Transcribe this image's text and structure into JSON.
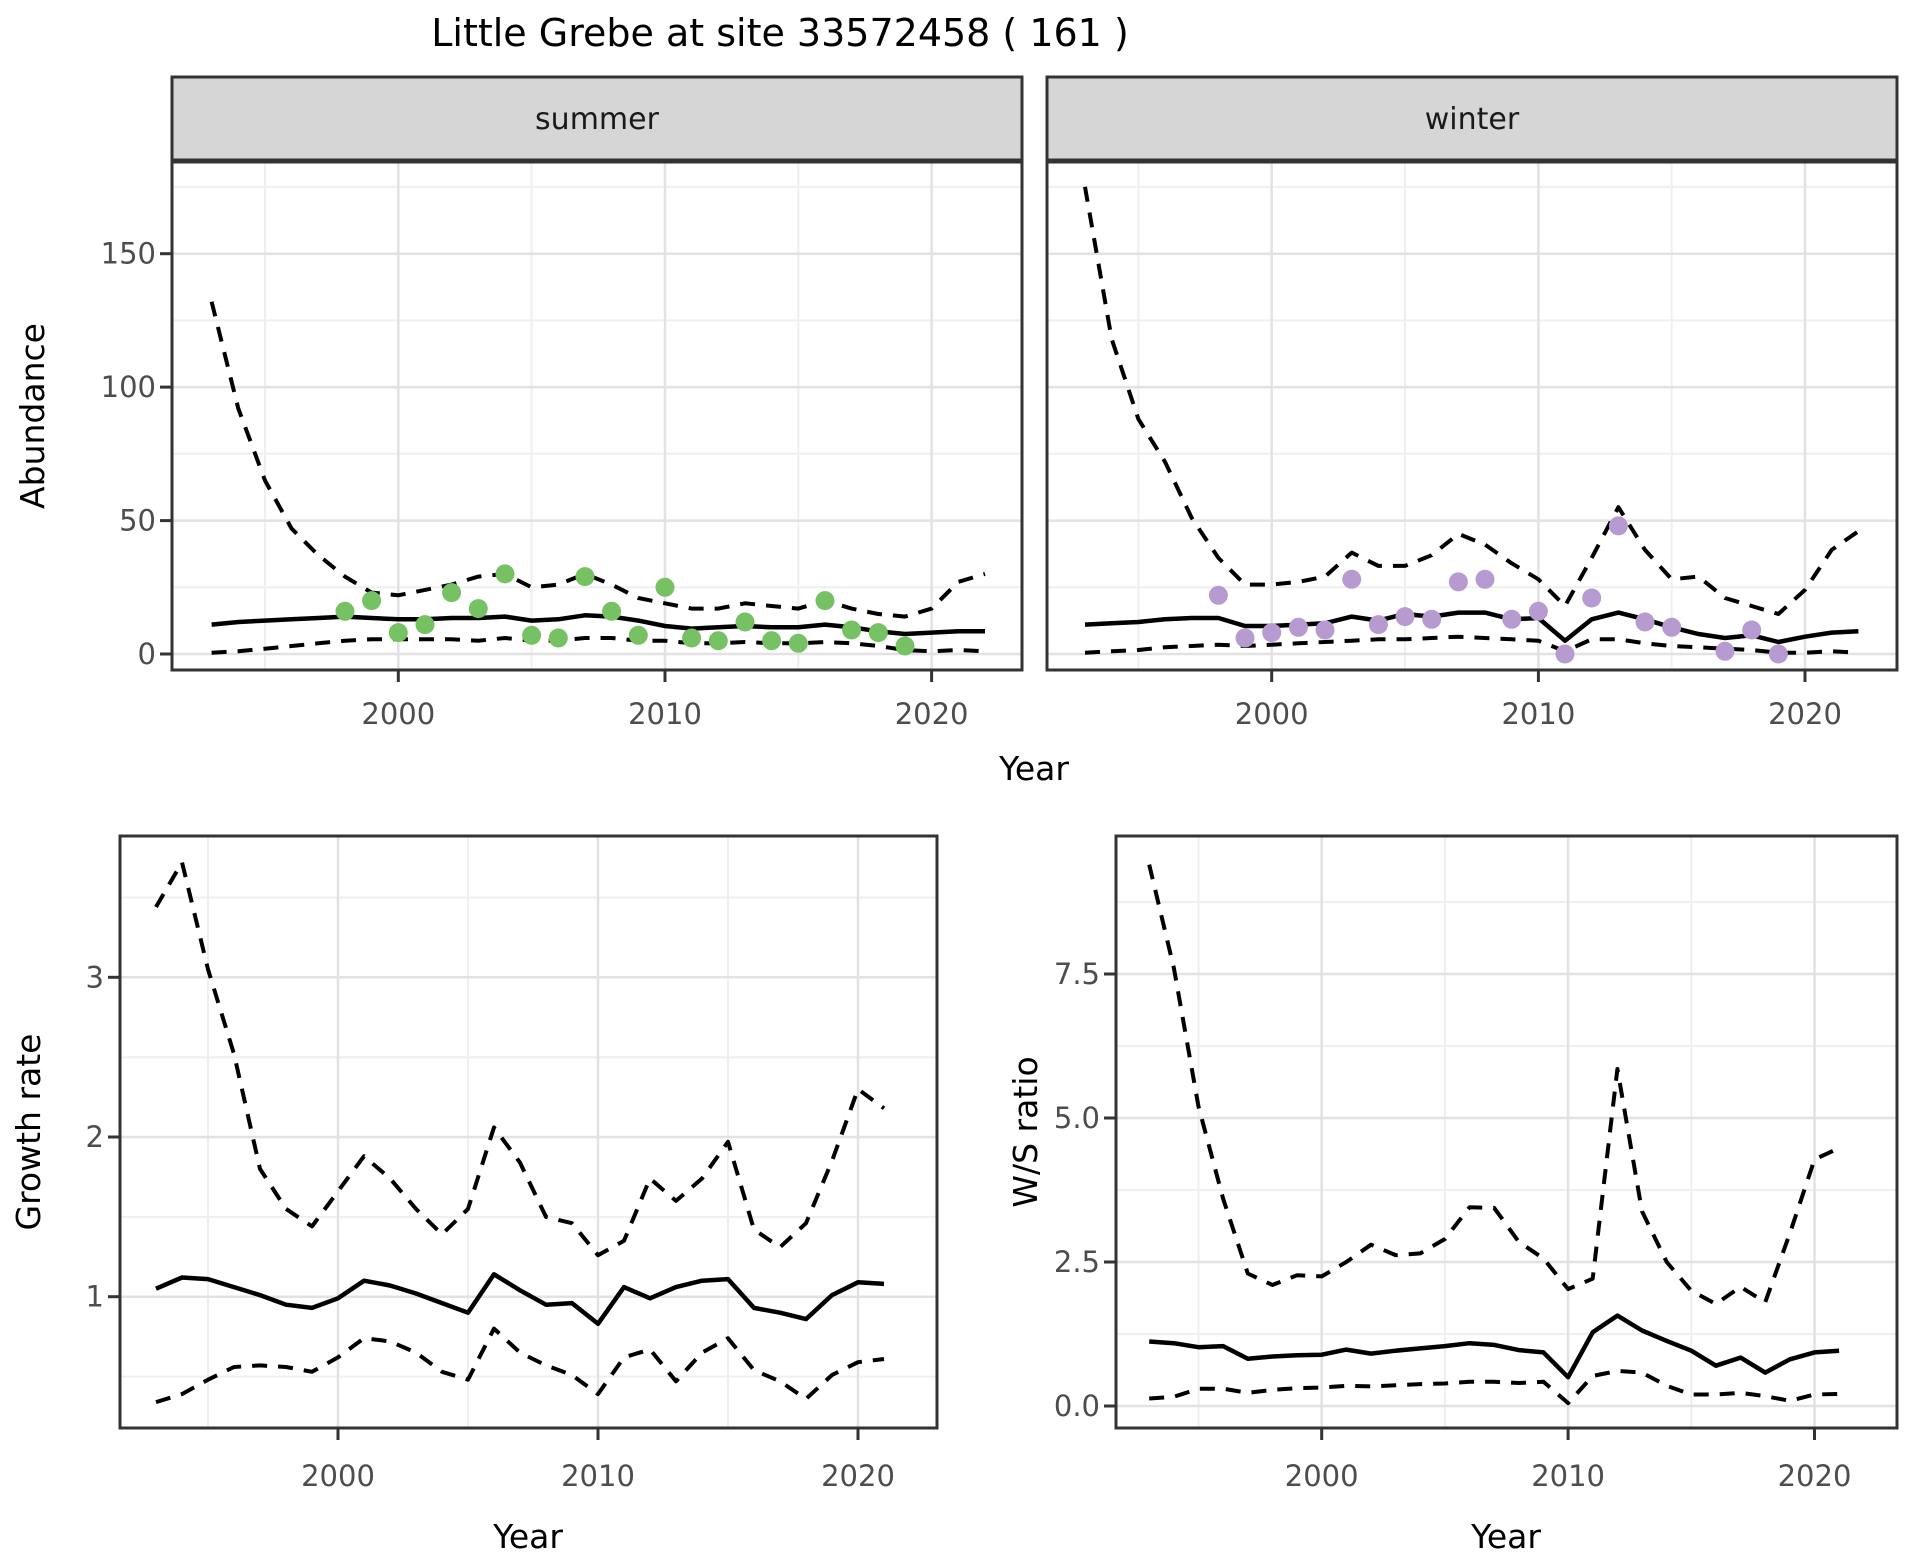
{
  "title": "Little Grebe at site 33572458 ( 161 )",
  "colors": {
    "summer_points": "#76C163",
    "winter_points": "#B79BD0",
    "line": "#000000",
    "strip_background": "#D6D6D6",
    "panel_border": "#333333",
    "grid_major": "#E2E2E2",
    "grid_minor": "#EFEFEF",
    "tick_text": "#4D4D4D"
  },
  "chart_data": [
    {
      "id": "abundance-summer",
      "type": "line",
      "facet_label": "summer",
      "xlabel": "Year",
      "ylabel": "Abundance",
      "x_ticks": [
        2000,
        2010,
        2020
      ],
      "x_tick_labels": [
        "2000",
        "2010",
        "2020"
      ],
      "x_minor": [
        1995,
        2005,
        2015
      ],
      "y_ticks": [
        0,
        50,
        100,
        150
      ],
      "y_tick_labels": [
        "0",
        "50",
        "100",
        "150"
      ],
      "y_minor": [
        25,
        75,
        125,
        175
      ],
      "xlim": [
        1991.5,
        2023.4
      ],
      "ylim": [
        -4,
        186
      ],
      "years": [
        1993,
        1994,
        1995,
        1996,
        1997,
        1998,
        1999,
        2000,
        2001,
        2002,
        2003,
        2004,
        2005,
        2006,
        2007,
        2008,
        2009,
        2010,
        2011,
        2012,
        2013,
        2014,
        2015,
        2016,
        2017,
        2018,
        2019,
        2020,
        2021,
        2022
      ],
      "series": [
        {
          "name": "upper_ci",
          "style": "dashed",
          "values": [
            132,
            92,
            65,
            47,
            37,
            29,
            23,
            22,
            24,
            26,
            29,
            30,
            25,
            26,
            30,
            26,
            21,
            19,
            17,
            17,
            19,
            18,
            17,
            20,
            17,
            15,
            14,
            17,
            27,
            30
          ]
        },
        {
          "name": "median",
          "style": "solid",
          "values": [
            11,
            12,
            12.5,
            13,
            13.5,
            14,
            13.5,
            13,
            13,
            13.5,
            13.5,
            14,
            12.5,
            13,
            14.5,
            14,
            12.5,
            10.5,
            9.5,
            10,
            10.5,
            10,
            10,
            11,
            10,
            8.5,
            7.5,
            8,
            8.5,
            8.5
          ]
        },
        {
          "name": "lower_ci",
          "style": "dashed",
          "values": [
            0.5,
            1,
            2,
            3,
            4,
            5,
            5.5,
            5.5,
            5.5,
            5.5,
            5,
            6,
            5,
            5,
            6,
            6,
            5,
            5,
            4,
            4,
            4.5,
            4,
            4,
            4.5,
            4,
            3,
            1.5,
            1,
            1.5,
            1
          ]
        }
      ],
      "points": {
        "name": "observed_counts",
        "color": "#76C163",
        "years": [
          1998,
          1999,
          2000,
          2001,
          2002,
          2003,
          2004,
          2005,
          2006,
          2007,
          2008,
          2009,
          2010,
          2011,
          2012,
          2013,
          2014,
          2015,
          2016,
          2017,
          2018,
          2019
        ],
        "values": [
          16,
          20,
          8,
          11,
          23,
          17,
          30,
          7,
          6,
          29,
          16,
          7,
          25,
          6,
          5,
          12,
          5,
          4,
          20,
          9,
          8,
          3
        ]
      }
    },
    {
      "id": "abundance-winter",
      "type": "line",
      "facet_label": "winter",
      "xlabel": "Year",
      "ylabel": "Abundance",
      "x_ticks": [
        2000,
        2010,
        2020
      ],
      "x_tick_labels": [
        "2000",
        "2010",
        "2020"
      ],
      "x_minor": [
        1995,
        2005,
        2015
      ],
      "y_ticks": [
        0,
        50,
        100,
        150
      ],
      "y_tick_labels": [],
      "y_minor": [
        25,
        75,
        125,
        175
      ],
      "xlim": [
        1991.5,
        2023.4
      ],
      "ylim": [
        -4,
        186
      ],
      "years": [
        1993,
        1994,
        1995,
        1996,
        1997,
        1998,
        1999,
        2000,
        2001,
        2002,
        2003,
        2004,
        2005,
        2006,
        2007,
        2008,
        2009,
        2010,
        2011,
        2012,
        2013,
        2014,
        2015,
        2016,
        2017,
        2018,
        2019,
        2020,
        2021,
        2022
      ],
      "series": [
        {
          "name": "upper_ci",
          "style": "dashed",
          "values": [
            175,
            118,
            88,
            72,
            51,
            36,
            26,
            26,
            27,
            29,
            38,
            33,
            33,
            37,
            45,
            41,
            34,
            28,
            18,
            36,
            55,
            39,
            28,
            29,
            21,
            18,
            15,
            24,
            39,
            46
          ]
        },
        {
          "name": "median",
          "style": "solid",
          "values": [
            11,
            11.5,
            12,
            13,
            13.5,
            13.5,
            10.5,
            10.5,
            11,
            11.5,
            14,
            12.5,
            15,
            14,
            15.5,
            15.5,
            13,
            13.5,
            5,
            13,
            15.5,
            13,
            10,
            7.5,
            6,
            7,
            4.5,
            6.5,
            8,
            8.5
          ]
        },
        {
          "name": "lower_ci",
          "style": "dashed",
          "values": [
            0.5,
            1,
            1.5,
            2.5,
            3,
            3.5,
            3,
            3.5,
            4,
            4.5,
            5,
            5.5,
            5.5,
            6,
            6.5,
            6,
            5.5,
            5,
            1,
            5.5,
            5.5,
            4,
            3,
            2.5,
            2,
            1.5,
            0.5,
            0.5,
            1,
            0.5
          ]
        }
      ],
      "points": {
        "name": "observed_counts",
        "color": "#B79BD0",
        "years": [
          1998,
          1999,
          2000,
          2001,
          2002,
          2003,
          2004,
          2005,
          2006,
          2007,
          2008,
          2009,
          2010,
          2011,
          2012,
          2013,
          2014,
          2015,
          2017,
          2018,
          2019
        ],
        "values": [
          22,
          6,
          8,
          10,
          9,
          28,
          11,
          14,
          13,
          27,
          28,
          13,
          16,
          0,
          21,
          48,
          12,
          10,
          1,
          9,
          0
        ]
      }
    },
    {
      "id": "growth-rate",
      "type": "line",
      "xlabel": "Year",
      "ylabel": "Growth rate",
      "x_ticks": [
        2000,
        2010,
        2020
      ],
      "x_tick_labels": [
        "2000",
        "2010",
        "2020"
      ],
      "x_minor": [
        1995,
        2005,
        2015
      ],
      "y_ticks": [
        1,
        2,
        3
      ],
      "y_tick_labels": [
        "1",
        "2",
        "3"
      ],
      "y_minor": [
        0.5,
        1.5,
        2.5,
        3.5
      ],
      "xlim": [
        1991.6,
        2023.4
      ],
      "ylim": [
        0.17,
        3.89
      ],
      "years": [
        1993,
        1994,
        1995,
        1996,
        1997,
        1998,
        1999,
        2000,
        2001,
        2002,
        2003,
        2004,
        2005,
        2006,
        2007,
        2008,
        2009,
        2010,
        2011,
        2012,
        2013,
        2014,
        2015,
        2016,
        2017,
        2018,
        2019,
        2020,
        2021
      ],
      "series": [
        {
          "name": "upper_ci",
          "style": "dashed",
          "values": [
            3.44,
            3.72,
            3.05,
            2.52,
            1.8,
            1.55,
            1.44,
            1.66,
            1.88,
            1.74,
            1.55,
            1.39,
            1.55,
            2.06,
            1.84,
            1.5,
            1.46,
            1.26,
            1.35,
            1.74,
            1.6,
            1.74,
            1.97,
            1.42,
            1.31,
            1.46,
            1.85,
            2.3,
            2.18
          ]
        },
        {
          "name": "median",
          "style": "solid",
          "values": [
            1.05,
            1.12,
            1.11,
            1.06,
            1.01,
            0.95,
            0.93,
            0.99,
            1.1,
            1.07,
            1.02,
            0.96,
            0.9,
            1.14,
            1.04,
            0.95,
            0.96,
            0.83,
            1.06,
            0.99,
            1.06,
            1.1,
            1.11,
            0.93,
            0.9,
            0.86,
            1.01,
            1.09,
            1.08
          ]
        },
        {
          "name": "lower_ci",
          "style": "dashed",
          "values": [
            0.34,
            0.39,
            0.48,
            0.56,
            0.57,
            0.56,
            0.53,
            0.62,
            0.74,
            0.72,
            0.65,
            0.53,
            0.48,
            0.8,
            0.65,
            0.57,
            0.51,
            0.39,
            0.62,
            0.67,
            0.47,
            0.65,
            0.74,
            0.54,
            0.47,
            0.36,
            0.51,
            0.59,
            0.61
          ]
        }
      ]
    },
    {
      "id": "ws-ratio",
      "type": "line",
      "xlabel": "Year",
      "ylabel": "W/S ratio",
      "x_ticks": [
        2000,
        2010,
        2020
      ],
      "x_tick_labels": [
        "2000",
        "2010",
        "2020"
      ],
      "x_minor": [
        1995,
        2005,
        2015
      ],
      "y_ticks": [
        0,
        2.5,
        5.0,
        7.5
      ],
      "y_tick_labels": [
        "0.0",
        "2.5",
        "5.0",
        "7.5"
      ],
      "y_minor": [
        1.25,
        3.75,
        6.25,
        8.75
      ],
      "xlim": [
        1991.6,
        2023.4
      ],
      "ylim": [
        -0.4,
        9.9
      ],
      "years": [
        1993,
        1994,
        1995,
        1996,
        1997,
        1998,
        1999,
        2000,
        2001,
        2002,
        2003,
        2004,
        2005,
        2006,
        2007,
        2008,
        2009,
        2010,
        2011,
        2012,
        2013,
        2014,
        2015,
        2016,
        2017,
        2018,
        2019,
        2020,
        2021
      ],
      "series": [
        {
          "name": "upper_ci",
          "style": "dashed",
          "values": [
            9.4,
            7.6,
            5.2,
            3.6,
            2.3,
            2.1,
            2.27,
            2.25,
            2.5,
            2.8,
            2.62,
            2.65,
            2.9,
            3.45,
            3.44,
            2.85,
            2.56,
            2.03,
            2.21,
            5.85,
            3.38,
            2.5,
            2.0,
            1.77,
            2.07,
            1.8,
            3.0,
            4.28,
            4.48
          ]
        },
        {
          "name": "median",
          "style": "solid",
          "values": [
            1.12,
            1.09,
            1.02,
            1.04,
            0.82,
            0.86,
            0.88,
            0.89,
            0.98,
            0.91,
            0.96,
            1.0,
            1.04,
            1.09,
            1.06,
            0.97,
            0.93,
            0.5,
            1.28,
            1.57,
            1.31,
            1.13,
            0.96,
            0.7,
            0.84,
            0.58,
            0.81,
            0.93,
            0.96
          ]
        },
        {
          "name": "lower_ci",
          "style": "dashed",
          "values": [
            0.13,
            0.16,
            0.3,
            0.3,
            0.23,
            0.28,
            0.31,
            0.32,
            0.35,
            0.34,
            0.36,
            0.38,
            0.39,
            0.42,
            0.42,
            0.4,
            0.42,
            0.05,
            0.52,
            0.61,
            0.58,
            0.35,
            0.2,
            0.2,
            0.23,
            0.17,
            0.09,
            0.2,
            0.21
          ]
        }
      ]
    }
  ]
}
